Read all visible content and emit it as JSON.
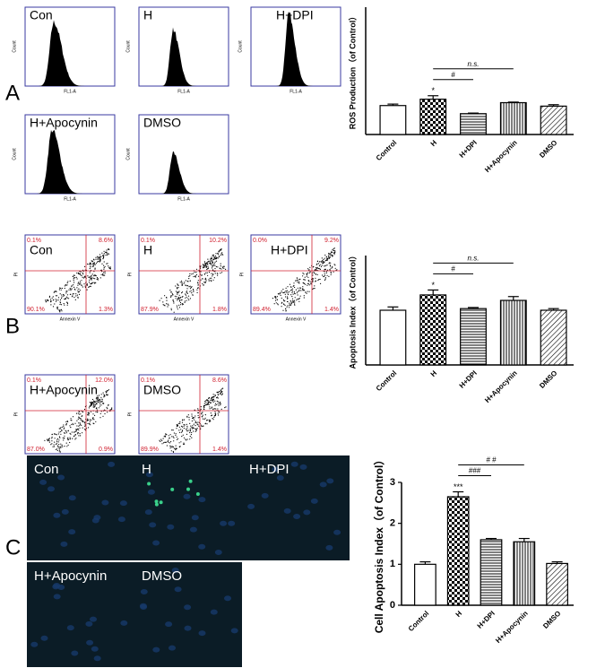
{
  "panel_labels": [
    "A",
    "B",
    "C"
  ],
  "flow_histograms": {
    "y_label": "Count",
    "x_label": "FL1-A",
    "samples": [
      "Con",
      "H",
      "H+DPI",
      "H+Apocynin",
      "DMSO"
    ]
  },
  "flow_scatter": {
    "y_label": "PI",
    "x_label": "Annexin V",
    "samples": [
      {
        "name": "Con",
        "quadrants": [
          "0.1%",
          "8.6%",
          "90.1%",
          "1.3%"
        ]
      },
      {
        "name": "H",
        "quadrants": [
          "0.1%",
          "10.2%",
          "87.9%",
          "1.8%"
        ]
      },
      {
        "name": "H+DPI",
        "quadrants": [
          "0.0%",
          "9.2%",
          "89.4%",
          "1.4%"
        ]
      },
      {
        "name": "H+Apocynin",
        "quadrants": [
          "0.1%",
          "12.0%",
          "87.0%",
          "0.9%"
        ]
      },
      {
        "name": "DMSO",
        "quadrants": [
          "0.1%",
          "8.6%",
          "89.9%",
          "1.4%"
        ]
      }
    ]
  },
  "microscopy": {
    "samples": [
      "Con",
      "H",
      "H+DPI",
      "H+Apocynin",
      "DMSO"
    ]
  },
  "chart_data": [
    {
      "type": "bar",
      "y_label": "ROS Production（of Control）",
      "categories": [
        "Control",
        "H",
        "H+DPI",
        "H+Apocynin",
        "DMSO"
      ],
      "values": [
        1.0,
        1.22,
        0.72,
        1.1,
        0.98
      ],
      "errors": [
        0.05,
        0.12,
        0.02,
        0.02,
        0.05
      ],
      "patterns": [
        "none",
        "checker",
        "horizontal",
        "vertical",
        "diagonal"
      ],
      "color": "#000000",
      "ylim": [
        0,
        4.4
      ],
      "annotations": [
        "*",
        "#",
        "n.s."
      ]
    },
    {
      "type": "bar",
      "y_label": "Apoptosis Index（of Control）",
      "categories": [
        "Control",
        "H",
        "H+DPI",
        "H+Apocynin",
        "DMSO"
      ],
      "values": [
        1.0,
        1.28,
        1.03,
        1.18,
        1.0
      ],
      "errors": [
        0.06,
        0.09,
        0.02,
        0.07,
        0.03
      ],
      "patterns": [
        "none",
        "checker",
        "horizontal",
        "vertical",
        "diagonal"
      ],
      "color": "#000000",
      "ylim": [
        0,
        2
      ],
      "annotations": [
        "*",
        "#",
        "n.s."
      ]
    },
    {
      "type": "bar",
      "y_label": "Cell Apoptosis Index（of Control）",
      "categories": [
        "Control",
        "H",
        "H+DPI",
        "H+Apocynin",
        "DMSO"
      ],
      "values": [
        1.0,
        2.65,
        1.6,
        1.55,
        1.02
      ],
      "errors": [
        0.06,
        0.12,
        0.03,
        0.08,
        0.04
      ],
      "patterns": [
        "none",
        "checker",
        "horizontal",
        "vertical",
        "diagonal"
      ],
      "color": "#000000",
      "ylim": [
        0,
        3
      ],
      "yticks": [
        0,
        1,
        2,
        3
      ],
      "annotations": [
        "***",
        "###",
        "# #"
      ]
    }
  ]
}
